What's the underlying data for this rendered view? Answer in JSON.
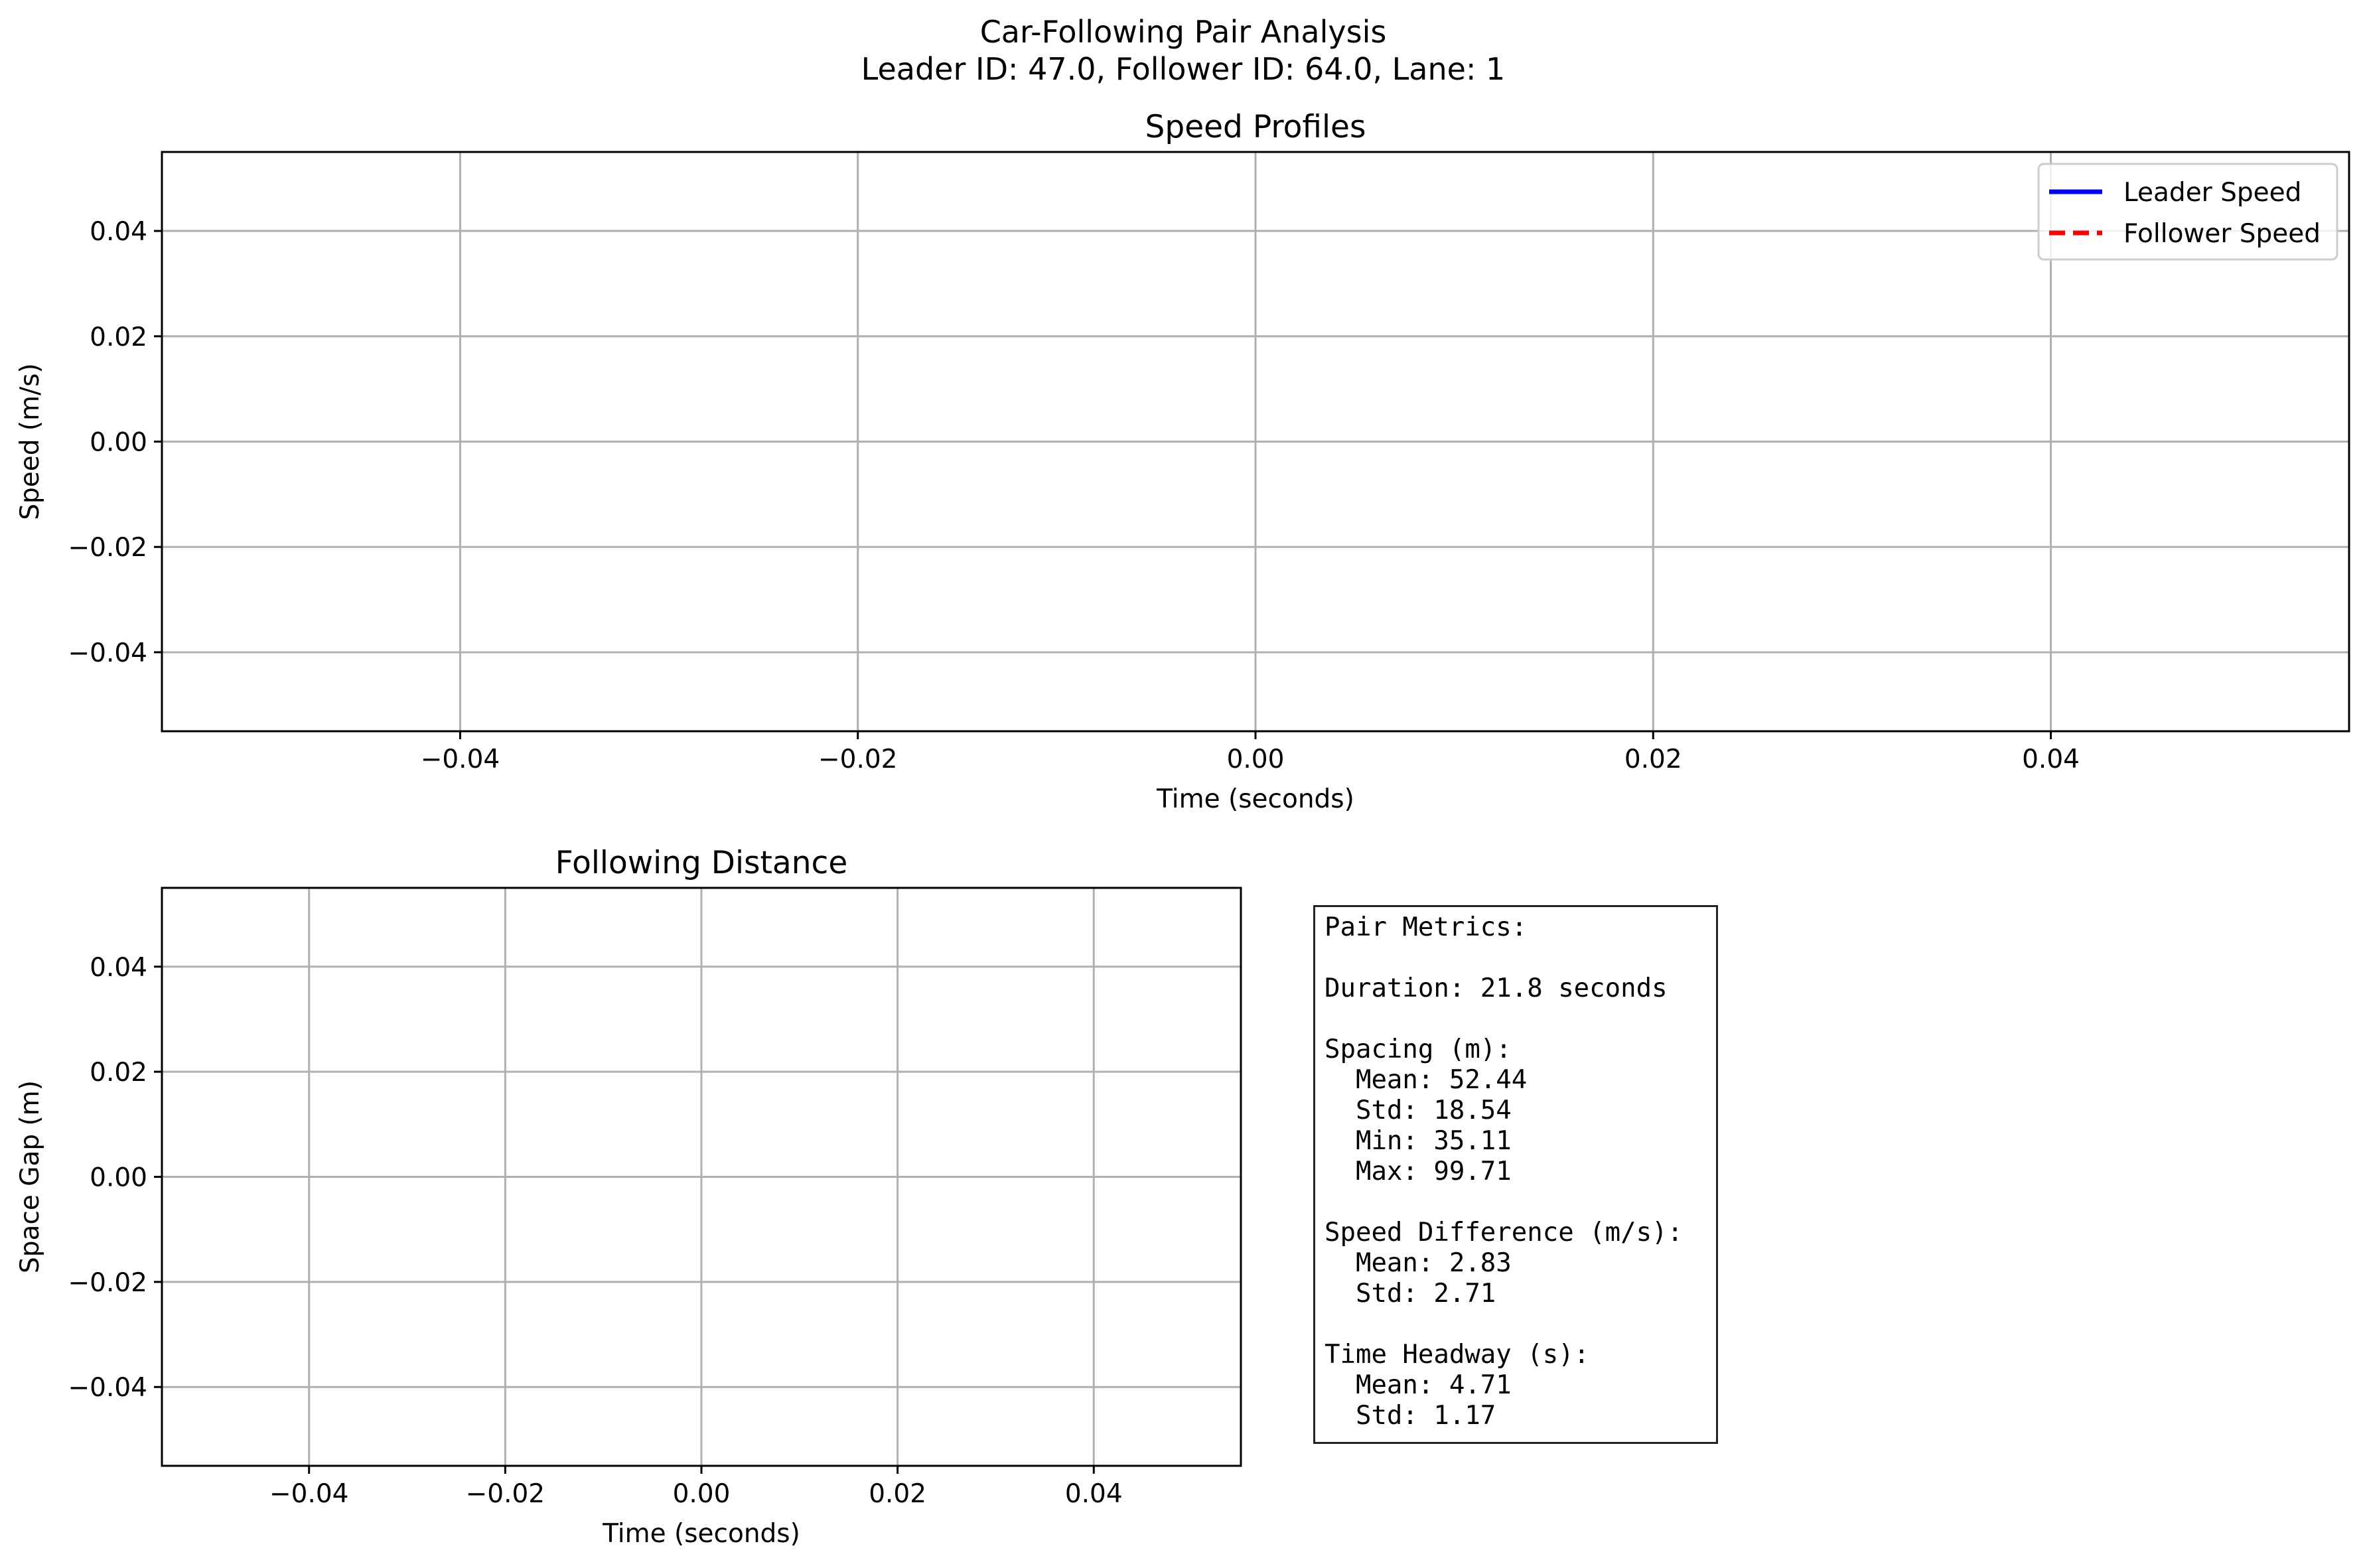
{
  "figure": {
    "title_line1": "Car-Following Pair Analysis",
    "title_line2": "Leader ID: 47.0, Follower ID: 64.0, Lane: 1"
  },
  "colors": {
    "leader": "#0000ff",
    "follower": "#ff0000",
    "grid": "#b0b0b0"
  },
  "chart_data": [
    {
      "type": "line",
      "title": "Speed Profiles",
      "xlabel": "Time (seconds)",
      "ylabel": "Speed (m/s)",
      "xlim": [
        -0.055,
        0.055
      ],
      "ylim": [
        -0.055,
        0.055
      ],
      "xticks": [
        -0.04,
        -0.02,
        0.0,
        0.02,
        0.04
      ],
      "xtick_labels": [
        "−0.04",
        "−0.02",
        "0.00",
        "0.02",
        "0.04"
      ],
      "yticks": [
        0.04,
        0.02,
        0.0,
        -0.02,
        -0.04
      ],
      "ytick_labels": [
        "0.04",
        "0.02",
        "0.00",
        "−0.02",
        "−0.04"
      ],
      "grid": true,
      "legend_position": "top-right",
      "series": [
        {
          "name": "Leader Speed",
          "style": "solid",
          "color": "#0000ff",
          "x": [],
          "y": []
        },
        {
          "name": "Follower Speed",
          "style": "dashed",
          "color": "#ff0000",
          "x": [],
          "y": []
        }
      ]
    },
    {
      "type": "line",
      "title": "Following Distance",
      "xlabel": "Time (seconds)",
      "ylabel": "Space Gap (m)",
      "xlim": [
        -0.055,
        0.055
      ],
      "ylim": [
        -0.055,
        0.055
      ],
      "xticks": [
        -0.04,
        -0.02,
        0.0,
        0.02,
        0.04
      ],
      "xtick_labels": [
        "−0.04",
        "−0.02",
        "0.00",
        "0.02",
        "0.04"
      ],
      "yticks": [
        0.04,
        0.02,
        0.0,
        -0.02,
        -0.04
      ],
      "ytick_labels": [
        "0.04",
        "0.02",
        "0.00",
        "−0.02",
        "−0.04"
      ],
      "grid": true,
      "series": []
    }
  ],
  "metrics": {
    "lines": [
      "Pair Metrics:",
      "",
      "Duration: 21.8 seconds",
      "",
      "Spacing (m):",
      "  Mean: 52.44",
      "  Std: 18.54",
      "  Min: 35.11",
      "  Max: 99.71",
      "",
      "Speed Difference (m/s):",
      "  Mean: 2.83",
      "  Std: 2.71",
      "",
      "Time Headway (s):",
      "  Mean: 4.71",
      "  Std: 1.17"
    ]
  }
}
